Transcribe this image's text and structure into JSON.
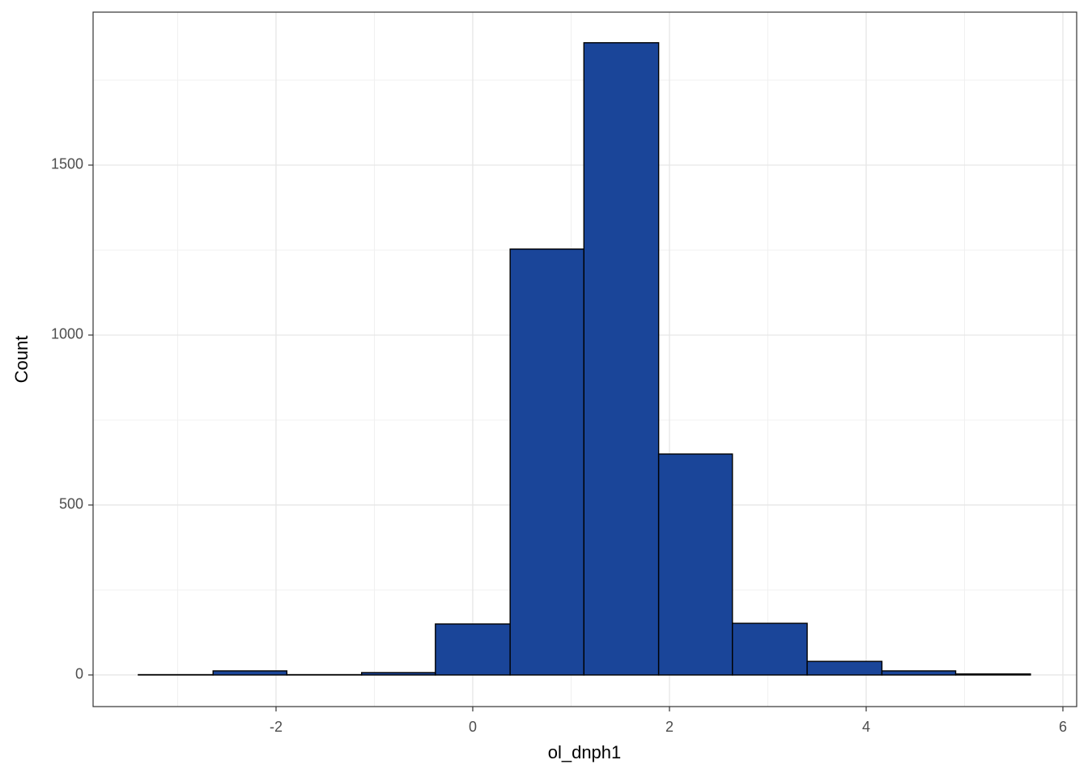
{
  "chart_data": {
    "type": "histogram",
    "x_label": "ol_dnph1",
    "y_label": "Count",
    "bins": [
      -3.4,
      -2.64,
      -1.89,
      -1.13,
      -0.38,
      0.38,
      1.13,
      1.89,
      2.64,
      3.4,
      4.16,
      4.91,
      5.67
    ],
    "values": [
      1,
      12,
      1,
      7,
      150,
      1253,
      1860,
      650,
      152,
      40,
      12,
      3
    ],
    "color": "#1a4599",
    "edge_color": "#000000",
    "xlim": [
      -3.86,
      6.14
    ],
    "xticks": [
      -2,
      0,
      2,
      4,
      6
    ],
    "ylim": [
      -93,
      1950
    ],
    "yticks": [
      0,
      500,
      1000,
      1500
    ],
    "grid": true
  }
}
